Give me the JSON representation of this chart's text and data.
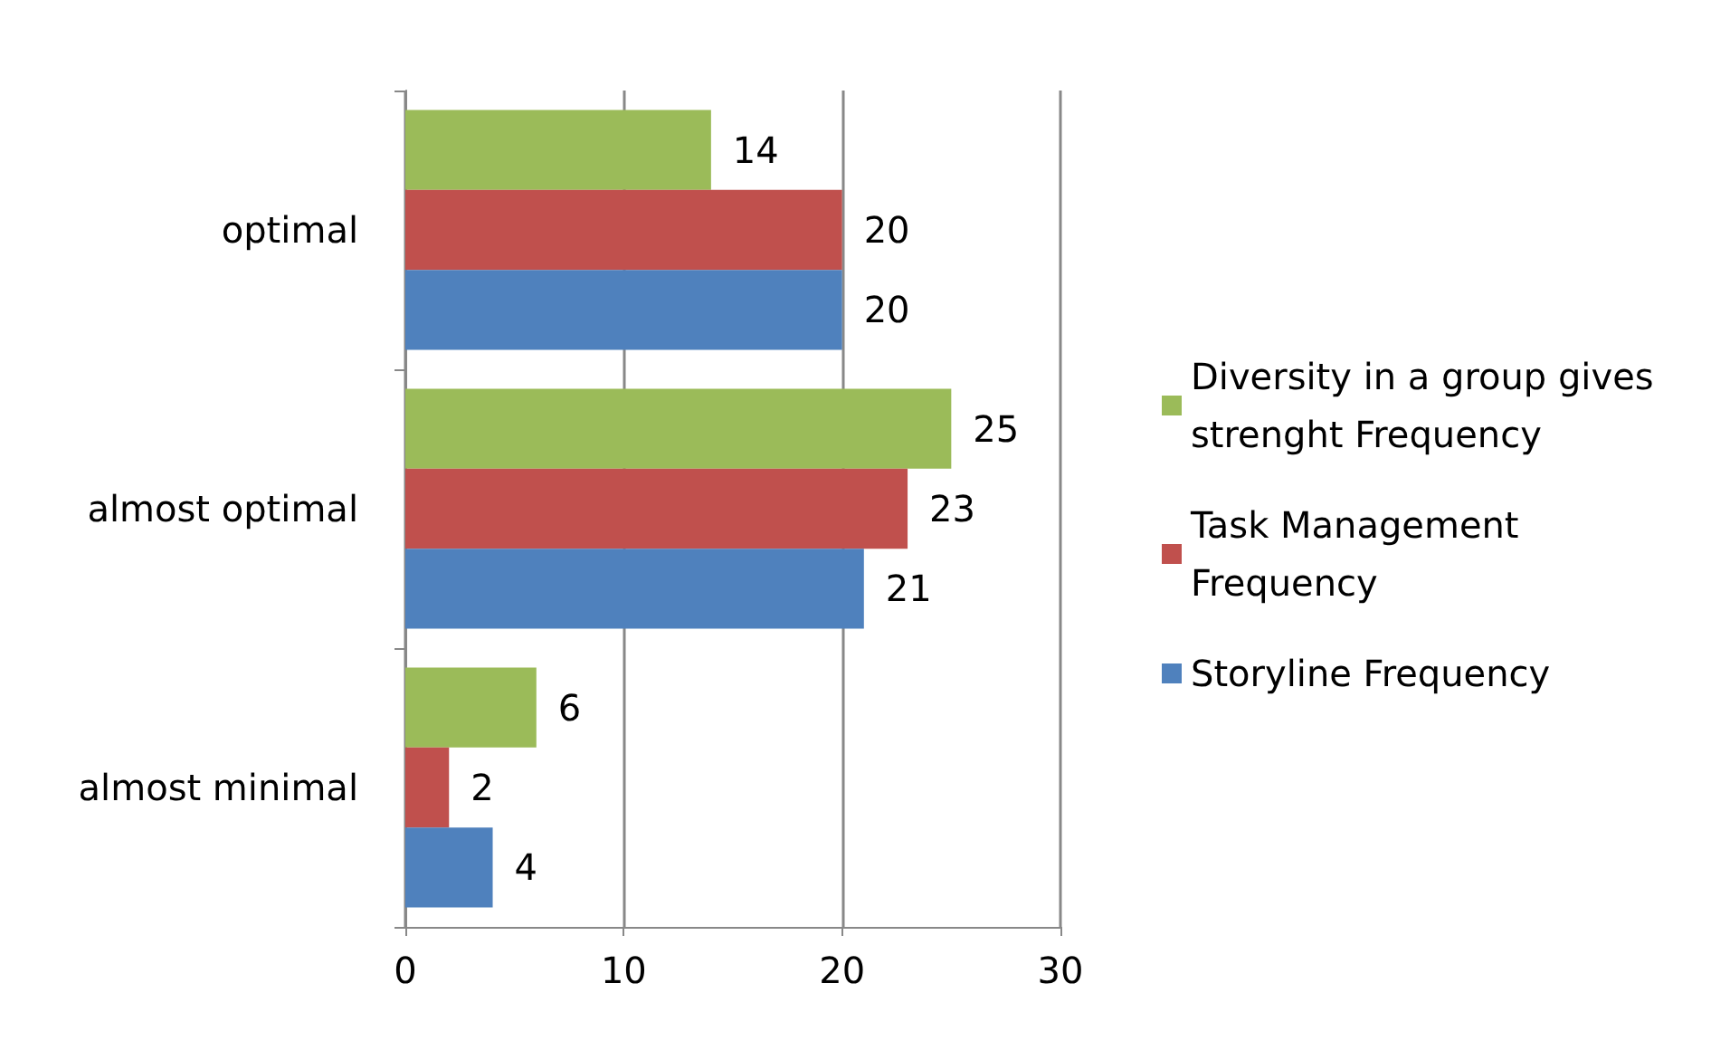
{
  "chart_data": {
    "type": "bar",
    "orientation": "horizontal",
    "categories": [
      "optimal",
      "almost optimal",
      "almost minimal"
    ],
    "series": [
      {
        "name": "Diversity in a group gives strenght Frequency",
        "color": "#9bbb59",
        "values": [
          14,
          25,
          6
        ]
      },
      {
        "name": "Task Management Frequency",
        "color": "#c0504d",
        "values": [
          20,
          23,
          2
        ]
      },
      {
        "name": "Storyline Frequency",
        "color": "#4f81bd",
        "values": [
          20,
          21,
          4
        ]
      }
    ],
    "xlim": [
      0,
      30
    ],
    "xticks": [
      0,
      10,
      20,
      30
    ],
    "grid": "x",
    "legend": "right",
    "data_labels": true
  }
}
